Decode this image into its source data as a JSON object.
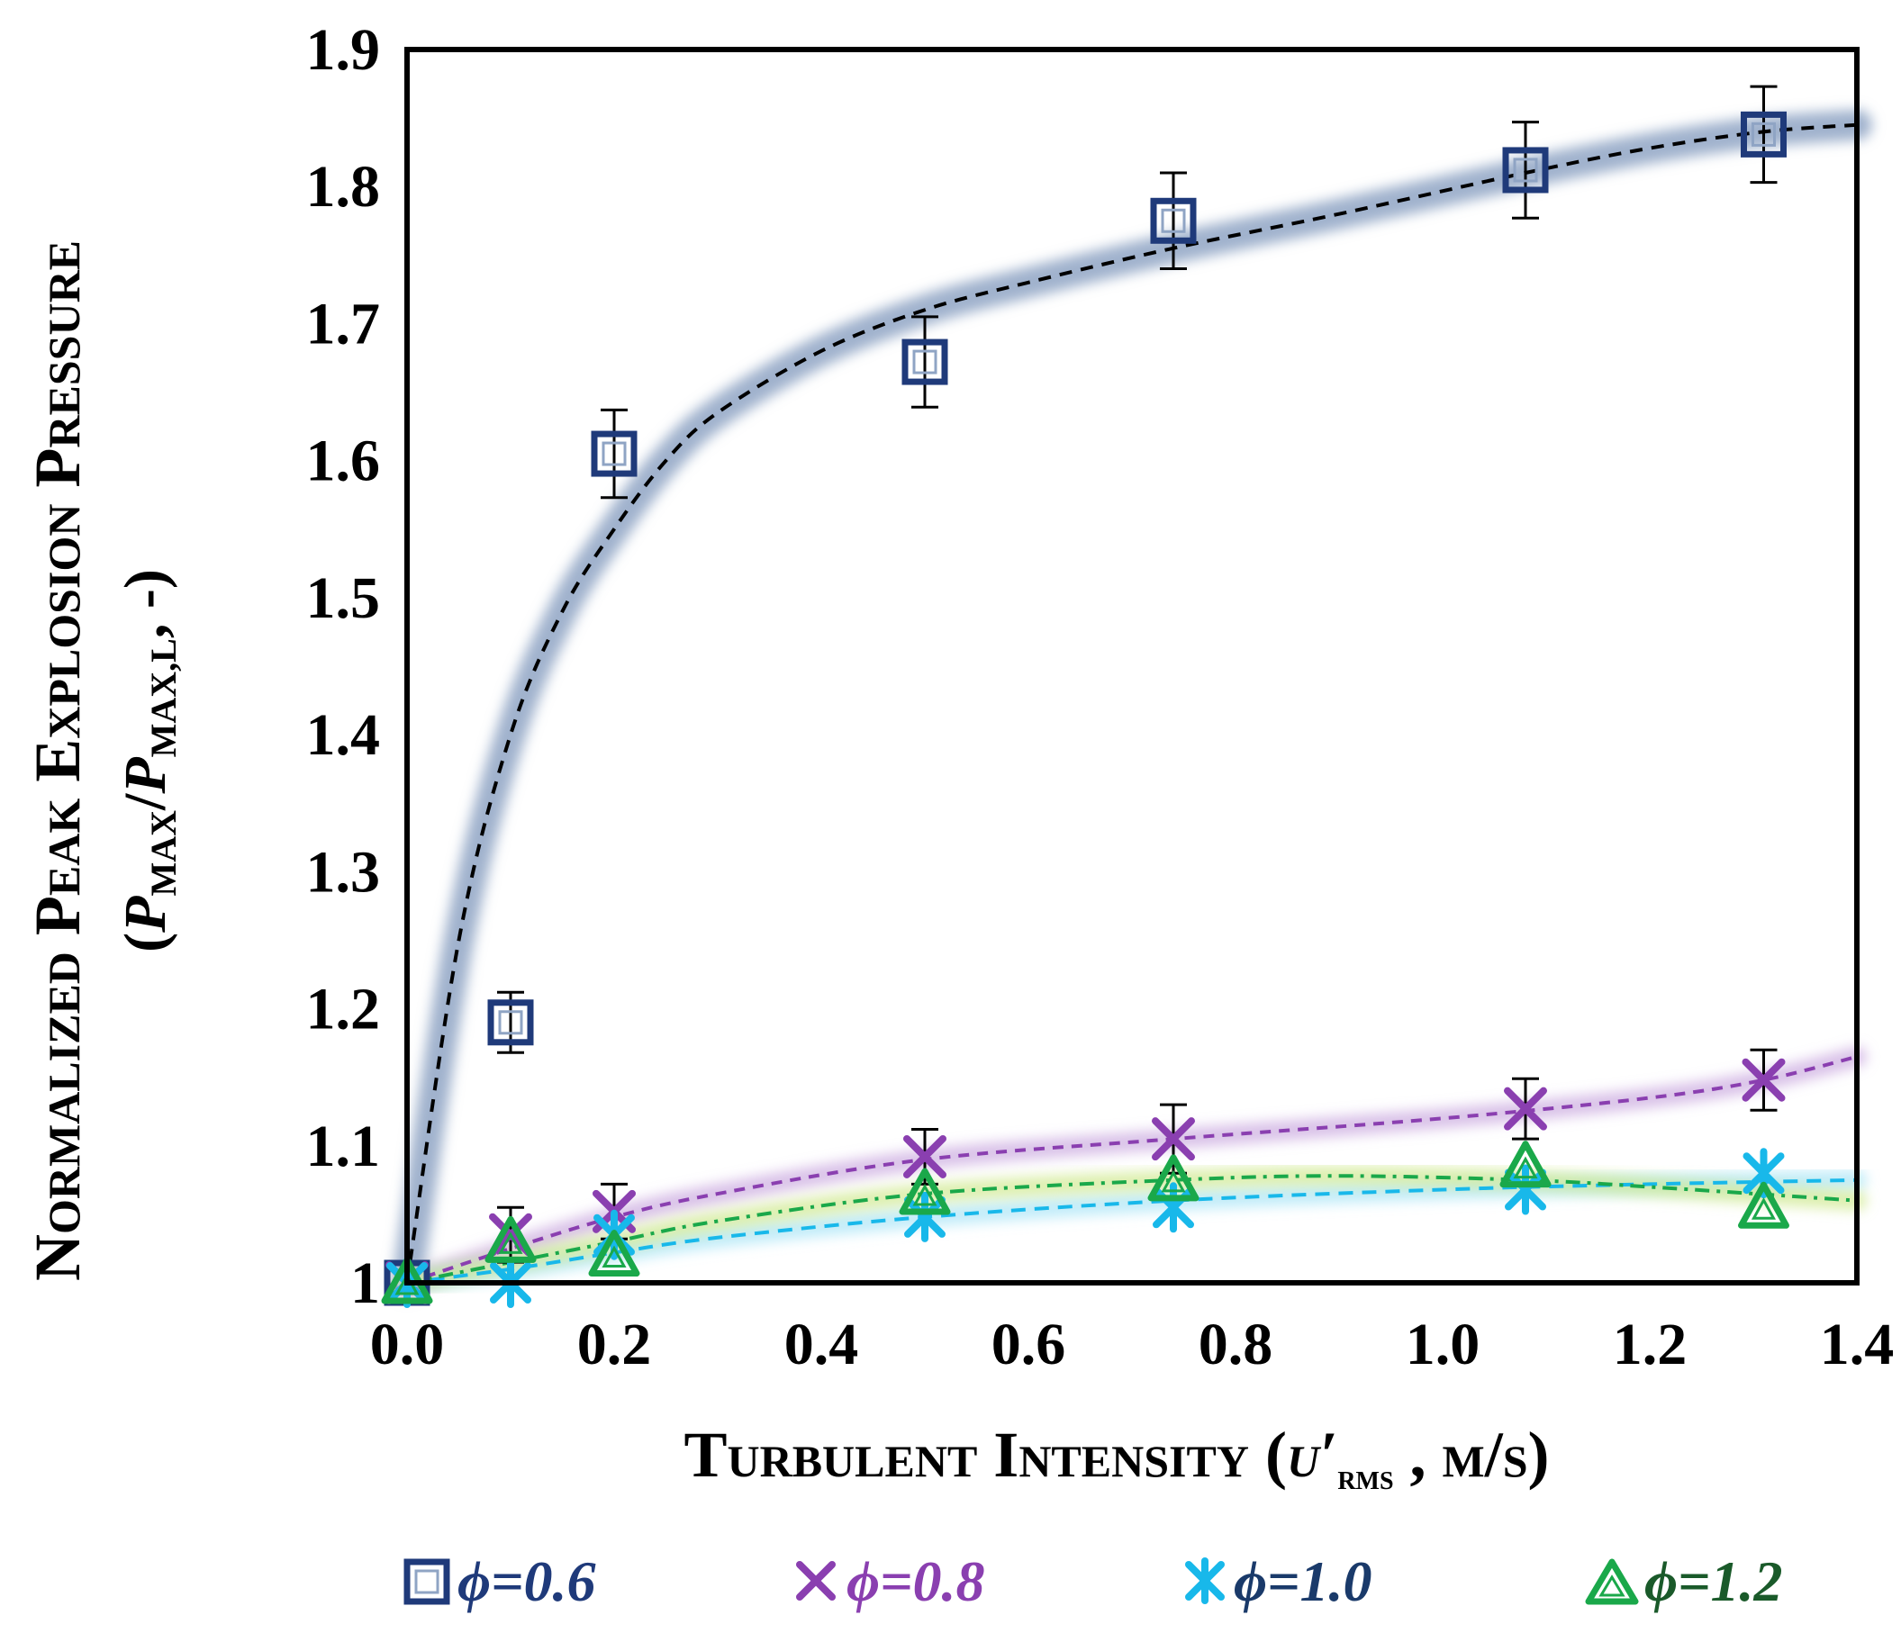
{
  "chart_data": {
    "type": "scatter",
    "title": "",
    "xlabel": {
      "prefix": "Turbulent Intensity (",
      "symbol": "u′",
      "subscript": "rms",
      "suffix": " , m/s)"
    },
    "ylabel": {
      "line1": "Normalized Peak Explosion Pressure",
      "line2": {
        "open": "(",
        "p1": "P",
        "s1": "MAX",
        "slash": "/",
        "p2": "P",
        "s2": "MAX,L",
        "close": ", -)"
      }
    },
    "xlim": [
      0.0,
      1.4
    ],
    "ylim": [
      1.0,
      1.9
    ],
    "xticks": [
      "0.0",
      "0.2",
      "0.4",
      "0.6",
      "0.8",
      "1.0",
      "1.2",
      "1.4"
    ],
    "yticks": [
      "1",
      "1.1",
      "1.2",
      "1.3",
      "1.4",
      "1.5",
      "1.6",
      "1.7",
      "1.8",
      "1.9"
    ],
    "xtick_values": [
      0.0,
      0.2,
      0.4,
      0.6,
      0.8,
      1.0,
      1.2,
      1.4
    ],
    "ytick_values": [
      1.0,
      1.1,
      1.2,
      1.3,
      1.4,
      1.5,
      1.6,
      1.7,
      1.8,
      1.9
    ],
    "legend_position": "bottom",
    "series": [
      {
        "name": "ϕ=0.6",
        "marker": "square",
        "color": "#1f3a7a",
        "trend_color": "#000000",
        "band_color": "#8fa4c4",
        "x": [
          0.0,
          0.1,
          0.2,
          0.5,
          0.74,
          1.08,
          1.31
        ],
        "y": [
          1.0,
          1.19,
          1.605,
          1.672,
          1.775,
          1.812,
          1.838
        ],
        "error": [
          0.0,
          0.022,
          0.032,
          0.033,
          0.035,
          0.035,
          0.035
        ],
        "trend": {
          "x": [
            0.0,
            0.05,
            0.1,
            0.15,
            0.2,
            0.25,
            0.3,
            0.4,
            0.5,
            0.6,
            0.74,
            0.9,
            1.08,
            1.2,
            1.31,
            1.4
          ],
          "y": [
            1.0,
            1.25,
            1.4,
            1.49,
            1.55,
            1.6,
            1.635,
            1.68,
            1.71,
            1.73,
            1.755,
            1.78,
            1.81,
            1.828,
            1.84,
            1.845
          ]
        }
      },
      {
        "name": "ϕ=0.8",
        "marker": "x",
        "color": "#8a3fb0",
        "trend_color": "#8a3fb0",
        "band_color": "#c9a6de",
        "x": [
          0.0,
          0.1,
          0.2,
          0.5,
          0.74,
          1.08,
          1.31
        ],
        "y": [
          1.0,
          1.035,
          1.052,
          1.092,
          1.105,
          1.127,
          1.148
        ],
        "error": [
          0.0,
          0.02,
          0.02,
          0.02,
          0.025,
          0.022,
          0.022
        ],
        "trend": {
          "x": [
            0.0,
            0.1,
            0.2,
            0.3,
            0.5,
            0.74,
            1.0,
            1.2,
            1.31,
            1.4
          ],
          "y": [
            1.0,
            1.025,
            1.048,
            1.065,
            1.09,
            1.105,
            1.12,
            1.135,
            1.148,
            1.165
          ]
        }
      },
      {
        "name": "ϕ=1.0",
        "marker": "asterisk",
        "color": "#18b8ea",
        "trend_color": "#18b8ea",
        "band_color": "#a6e4f7",
        "x": [
          0.0,
          0.1,
          0.2,
          0.5,
          0.74,
          1.08,
          1.31
        ],
        "y": [
          1.0,
          1.0,
          1.035,
          1.048,
          1.055,
          1.068,
          1.08
        ],
        "error": [
          0.0,
          0.0,
          0.0,
          0.0,
          0.0,
          0.0,
          0.0
        ],
        "trend": {
          "x": [
            0.0,
            0.1,
            0.2,
            0.3,
            0.5,
            0.74,
            1.0,
            1.2,
            1.4
          ],
          "y": [
            1.0,
            1.01,
            1.022,
            1.033,
            1.048,
            1.06,
            1.068,
            1.072,
            1.075
          ]
        }
      },
      {
        "name": "ϕ=1.2",
        "marker": "triangle",
        "color": "#1aa84a",
        "trend_color": "#1aa84a",
        "band_color": "#cfe88a",
        "x": [
          0.0,
          0.1,
          0.2,
          0.5,
          0.74,
          1.08,
          1.31
        ],
        "y": [
          1.0,
          1.03,
          1.02,
          1.065,
          1.075,
          1.085,
          1.055
        ],
        "error": [
          0.0,
          0.0,
          0.0,
          0.0,
          0.0,
          0.0,
          0.0
        ],
        "trend": {
          "x": [
            0.0,
            0.1,
            0.2,
            0.3,
            0.5,
            0.74,
            0.9,
            1.08,
            1.2,
            1.4
          ],
          "y": [
            1.0,
            1.015,
            1.03,
            1.045,
            1.065,
            1.075,
            1.078,
            1.075,
            1.07,
            1.06
          ]
        }
      }
    ]
  }
}
